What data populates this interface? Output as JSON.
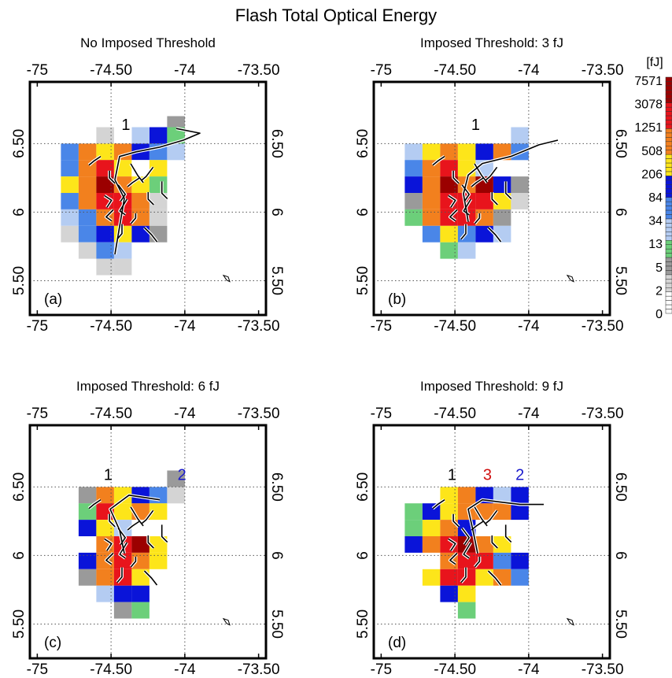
{
  "figure": {
    "title": "Flash Total Optical Energy"
  },
  "colorbar": {
    "unit": "[fJ]",
    "labels": [
      "7571",
      "3078",
      "1251",
      "508",
      "206",
      "84",
      "34",
      "13",
      "5",
      "2",
      "0"
    ],
    "bands": [
      {
        "name": "dark-red",
        "color": "#9b0000",
        "n": 6
      },
      {
        "name": "red",
        "color": "#e8141c",
        "n": 6
      },
      {
        "name": "orange",
        "color": "#f2801e",
        "n": 6
      },
      {
        "name": "yellow",
        "color": "#fde51a",
        "n": 5
      },
      {
        "name": "blue",
        "color": "#0a14d9",
        "n": 5
      },
      {
        "name": "mid-blue",
        "color": "#4a86e8",
        "n": 5
      },
      {
        "name": "light-blue",
        "color": "#b4ccf2",
        "n": 5
      },
      {
        "name": "green",
        "color": "#6ccf7a",
        "n": 4
      },
      {
        "name": "gray",
        "color": "#9a9a9a",
        "n": 4
      },
      {
        "name": "light-gray",
        "color": "#d4d4d4",
        "n": 4
      },
      {
        "name": "white",
        "color": "#ffffff",
        "n": 5
      }
    ]
  },
  "panels": [
    {
      "id": "a",
      "title": "No Imposed Threshold",
      "letter": "(a)",
      "flash_labels": [
        {
          "text": "1",
          "color": "#000000"
        }
      ]
    },
    {
      "id": "b",
      "title": "Imposed Threshold: 3 fJ",
      "letter": "(b)",
      "flash_labels": [
        {
          "text": "1",
          "color": "#000000"
        }
      ]
    },
    {
      "id": "c",
      "title": "Imposed Threshold: 6 fJ",
      "letter": "(c)",
      "flash_labels": [
        {
          "text": "1",
          "color": "#000000"
        },
        {
          "text": "2",
          "color": "#1a1acc"
        }
      ]
    },
    {
      "id": "d",
      "title": "Imposed Threshold: 9 fJ",
      "letter": "(d)",
      "flash_labels": [
        {
          "text": "1",
          "color": "#000000"
        },
        {
          "text": "3",
          "color": "#d01010"
        },
        {
          "text": "2",
          "color": "#1a1acc"
        }
      ]
    }
  ],
  "chart_data": [
    {
      "type": "heatmap",
      "title": "No Imposed Threshold",
      "x_ticks": [
        "-75",
        "-74.50",
        "-74",
        "-73.50"
      ],
      "y_ticks": [
        "6.50",
        "6",
        "5.50"
      ],
      "xlim": [
        -75.05,
        -73.45
      ],
      "ylim": [
        5.25,
        6.95
      ],
      "grid": true,
      "colorbar_unit": "[fJ]",
      "cells": [
        {
          "lon": -74.06,
          "lat": 6.64,
          "c": "gray"
        },
        {
          "lon": -74.18,
          "lat": 6.56,
          "c": "blue"
        },
        {
          "lon": -74.06,
          "lat": 6.56,
          "c": "green"
        },
        {
          "lon": -74.3,
          "lat": 6.56,
          "c": "light-blue"
        },
        {
          "lon": -74.42,
          "lat": 6.56,
          "c": "white"
        },
        {
          "lon": -74.54,
          "lat": 6.56,
          "c": "light-gray"
        },
        {
          "lon": -74.78,
          "lat": 6.44,
          "c": "mid-blue"
        },
        {
          "lon": -74.66,
          "lat": 6.44,
          "c": "orange"
        },
        {
          "lon": -74.54,
          "lat": 6.44,
          "c": "yellow"
        },
        {
          "lon": -74.42,
          "lat": 6.44,
          "c": "orange"
        },
        {
          "lon": -74.3,
          "lat": 6.44,
          "c": "blue"
        },
        {
          "lon": -74.18,
          "lat": 6.44,
          "c": "mid-blue"
        },
        {
          "lon": -74.06,
          "lat": 6.44,
          "c": "light-blue"
        },
        {
          "lon": -74.78,
          "lat": 6.32,
          "c": "mid-blue"
        },
        {
          "lon": -74.66,
          "lat": 6.32,
          "c": "orange"
        },
        {
          "lon": -74.54,
          "lat": 6.32,
          "c": "red"
        },
        {
          "lon": -74.42,
          "lat": 6.32,
          "c": "yellow"
        },
        {
          "lon": -74.3,
          "lat": 6.32,
          "c": "white"
        },
        {
          "lon": -74.18,
          "lat": 6.32,
          "c": "yellow"
        },
        {
          "lon": -74.78,
          "lat": 6.2,
          "c": "yellow"
        },
        {
          "lon": -74.66,
          "lat": 6.2,
          "c": "orange"
        },
        {
          "lon": -74.54,
          "lat": 6.2,
          "c": "dark-red"
        },
        {
          "lon": -74.42,
          "lat": 6.2,
          "c": "orange"
        },
        {
          "lon": -74.3,
          "lat": 6.2,
          "c": "yellow"
        },
        {
          "lon": -74.18,
          "lat": 6.2,
          "c": "green"
        },
        {
          "lon": -74.78,
          "lat": 6.08,
          "c": "mid-blue"
        },
        {
          "lon": -74.66,
          "lat": 6.08,
          "c": "orange"
        },
        {
          "lon": -74.54,
          "lat": 6.08,
          "c": "red"
        },
        {
          "lon": -74.42,
          "lat": 6.08,
          "c": "red"
        },
        {
          "lon": -74.3,
          "lat": 6.08,
          "c": "orange"
        },
        {
          "lon": -74.18,
          "lat": 6.08,
          "c": "light-gray"
        },
        {
          "lon": -74.78,
          "lat": 5.96,
          "c": "light-blue"
        },
        {
          "lon": -74.66,
          "lat": 5.96,
          "c": "mid-blue"
        },
        {
          "lon": -74.54,
          "lat": 5.96,
          "c": "orange"
        },
        {
          "lon": -74.42,
          "lat": 5.96,
          "c": "red"
        },
        {
          "lon": -74.3,
          "lat": 5.96,
          "c": "orange"
        },
        {
          "lon": -74.18,
          "lat": 5.96,
          "c": "light-gray"
        },
        {
          "lon": -74.78,
          "lat": 5.84,
          "c": "light-gray"
        },
        {
          "lon": -74.66,
          "lat": 5.84,
          "c": "mid-blue"
        },
        {
          "lon": -74.54,
          "lat": 5.84,
          "c": "blue"
        },
        {
          "lon": -74.42,
          "lat": 5.84,
          "c": "yellow"
        },
        {
          "lon": -74.3,
          "lat": 5.84,
          "c": "blue"
        },
        {
          "lon": -74.18,
          "lat": 5.84,
          "c": "gray"
        },
        {
          "lon": -74.66,
          "lat": 5.72,
          "c": "light-gray"
        },
        {
          "lon": -74.54,
          "lat": 5.72,
          "c": "mid-blue"
        },
        {
          "lon": -74.42,
          "lat": 5.72,
          "c": "light-blue"
        },
        {
          "lon": -74.54,
          "lat": 5.6,
          "c": "light-gray"
        },
        {
          "lon": -74.42,
          "lat": 5.6,
          "c": "light-gray"
        }
      ]
    },
    {
      "type": "heatmap",
      "title": "Imposed Threshold: 3 fJ",
      "x_ticks": [
        "-75",
        "-74.50",
        "-74",
        "-73.50"
      ],
      "y_ticks": [
        "6.50",
        "6",
        "5.50"
      ],
      "xlim": [
        -75.05,
        -73.45
      ],
      "ylim": [
        5.25,
        6.95
      ],
      "grid": true,
      "colorbar_unit": "[fJ]",
      "cells": [
        {
          "lon": -74.06,
          "lat": 6.56,
          "c": "light-blue"
        },
        {
          "lon": -74.78,
          "lat": 6.44,
          "c": "light-blue"
        },
        {
          "lon": -74.66,
          "lat": 6.44,
          "c": "yellow"
        },
        {
          "lon": -74.54,
          "lat": 6.44,
          "c": "orange"
        },
        {
          "lon": -74.42,
          "lat": 6.44,
          "c": "yellow"
        },
        {
          "lon": -74.3,
          "lat": 6.44,
          "c": "blue"
        },
        {
          "lon": -74.18,
          "lat": 6.44,
          "c": "orange"
        },
        {
          "lon": -74.06,
          "lat": 6.44,
          "c": "mid-blue"
        },
        {
          "lon": -74.78,
          "lat": 6.32,
          "c": "mid-blue"
        },
        {
          "lon": -74.66,
          "lat": 6.32,
          "c": "orange"
        },
        {
          "lon": -74.54,
          "lat": 6.32,
          "c": "red"
        },
        {
          "lon": -74.42,
          "lat": 6.32,
          "c": "yellow"
        },
        {
          "lon": -74.3,
          "lat": 6.32,
          "c": "light-blue"
        },
        {
          "lon": -74.78,
          "lat": 6.2,
          "c": "blue"
        },
        {
          "lon": -74.66,
          "lat": 6.2,
          "c": "orange"
        },
        {
          "lon": -74.54,
          "lat": 6.2,
          "c": "dark-red"
        },
        {
          "lon": -74.42,
          "lat": 6.2,
          "c": "orange"
        },
        {
          "lon": -74.3,
          "lat": 6.2,
          "c": "dark-red"
        },
        {
          "lon": -74.18,
          "lat": 6.2,
          "c": "blue"
        },
        {
          "lon": -74.06,
          "lat": 6.2,
          "c": "gray"
        },
        {
          "lon": -74.78,
          "lat": 6.08,
          "c": "gray"
        },
        {
          "lon": -74.66,
          "lat": 6.08,
          "c": "orange"
        },
        {
          "lon": -74.54,
          "lat": 6.08,
          "c": "red"
        },
        {
          "lon": -74.42,
          "lat": 6.08,
          "c": "red"
        },
        {
          "lon": -74.3,
          "lat": 6.08,
          "c": "red"
        },
        {
          "lon": -74.18,
          "lat": 6.08,
          "c": "yellow"
        },
        {
          "lon": -74.06,
          "lat": 6.08,
          "c": "light-gray"
        },
        {
          "lon": -74.78,
          "lat": 5.96,
          "c": "green"
        },
        {
          "lon": -74.66,
          "lat": 5.96,
          "c": "orange"
        },
        {
          "lon": -74.54,
          "lat": 5.96,
          "c": "red"
        },
        {
          "lon": -74.42,
          "lat": 5.96,
          "c": "red"
        },
        {
          "lon": -74.3,
          "lat": 5.96,
          "c": "orange"
        },
        {
          "lon": -74.18,
          "lat": 5.96,
          "c": "gray"
        },
        {
          "lon": -74.66,
          "lat": 5.84,
          "c": "mid-blue"
        },
        {
          "lon": -74.54,
          "lat": 5.84,
          "c": "yellow"
        },
        {
          "lon": -74.42,
          "lat": 5.84,
          "c": "mid-blue"
        },
        {
          "lon": -74.3,
          "lat": 5.84,
          "c": "blue"
        },
        {
          "lon": -74.18,
          "lat": 5.84,
          "c": "light-blue"
        },
        {
          "lon": -74.54,
          "lat": 5.72,
          "c": "green"
        },
        {
          "lon": -74.42,
          "lat": 5.72,
          "c": "light-blue"
        }
      ]
    },
    {
      "type": "heatmap",
      "title": "Imposed Threshold: 6 fJ",
      "x_ticks": [
        "-75",
        "-74.50",
        "-74",
        "-73.50"
      ],
      "y_ticks": [
        "6.50",
        "6",
        "5.50"
      ],
      "xlim": [
        -75.05,
        -73.45
      ],
      "ylim": [
        5.25,
        6.95
      ],
      "grid": true,
      "colorbar_unit": "[fJ]",
      "cells": [
        {
          "lon": -74.06,
          "lat": 6.56,
          "c": "gray"
        },
        {
          "lon": -74.66,
          "lat": 6.44,
          "c": "gray"
        },
        {
          "lon": -74.54,
          "lat": 6.44,
          "c": "orange"
        },
        {
          "lon": -74.42,
          "lat": 6.44,
          "c": "yellow"
        },
        {
          "lon": -74.3,
          "lat": 6.44,
          "c": "blue"
        },
        {
          "lon": -74.18,
          "lat": 6.44,
          "c": "mid-blue"
        },
        {
          "lon": -74.06,
          "lat": 6.44,
          "c": "light-gray"
        },
        {
          "lon": -74.66,
          "lat": 6.32,
          "c": "green"
        },
        {
          "lon": -74.54,
          "lat": 6.32,
          "c": "red"
        },
        {
          "lon": -74.42,
          "lat": 6.32,
          "c": "yellow"
        },
        {
          "lon": -74.3,
          "lat": 6.32,
          "c": "orange"
        },
        {
          "lon": -74.18,
          "lat": 6.32,
          "c": "yellow"
        },
        {
          "lon": -74.66,
          "lat": 6.2,
          "c": "blue"
        },
        {
          "lon": -74.54,
          "lat": 6.2,
          "c": "yellow"
        },
        {
          "lon": -74.42,
          "lat": 6.2,
          "c": "light-blue"
        },
        {
          "lon": -74.54,
          "lat": 6.08,
          "c": "orange"
        },
        {
          "lon": -74.42,
          "lat": 6.08,
          "c": "red"
        },
        {
          "lon": -74.3,
          "lat": 6.08,
          "c": "dark-red"
        },
        {
          "lon": -74.18,
          "lat": 6.08,
          "c": "yellow"
        },
        {
          "lon": -74.66,
          "lat": 5.96,
          "c": "blue"
        },
        {
          "lon": -74.54,
          "lat": 5.96,
          "c": "orange"
        },
        {
          "lon": -74.42,
          "lat": 5.96,
          "c": "red"
        },
        {
          "lon": -74.3,
          "lat": 5.96,
          "c": "orange"
        },
        {
          "lon": -74.18,
          "lat": 5.96,
          "c": "yellow"
        },
        {
          "lon": -74.66,
          "lat": 5.84,
          "c": "gray"
        },
        {
          "lon": -74.54,
          "lat": 5.84,
          "c": "orange"
        },
        {
          "lon": -74.42,
          "lat": 5.84,
          "c": "red"
        },
        {
          "lon": -74.3,
          "lat": 5.84,
          "c": "yellow"
        },
        {
          "lon": -74.54,
          "lat": 5.72,
          "c": "light-blue"
        },
        {
          "lon": -74.42,
          "lat": 5.72,
          "c": "blue"
        },
        {
          "lon": -74.3,
          "lat": 5.72,
          "c": "blue"
        },
        {
          "lon": -74.42,
          "lat": 5.6,
          "c": "gray"
        },
        {
          "lon": -74.3,
          "lat": 5.6,
          "c": "green"
        }
      ]
    },
    {
      "type": "heatmap",
      "title": "Imposed Threshold: 9 fJ",
      "x_ticks": [
        "-75",
        "-74.50",
        "-74",
        "-73.50"
      ],
      "y_ticks": [
        "6.50",
        "6",
        "5.50"
      ],
      "xlim": [
        -75.05,
        -73.45
      ],
      "ylim": [
        5.25,
        6.95
      ],
      "grid": true,
      "colorbar_unit": "[fJ]",
      "cells": [
        {
          "lon": -74.54,
          "lat": 6.44,
          "c": "yellow"
        },
        {
          "lon": -74.42,
          "lat": 6.44,
          "c": "orange"
        },
        {
          "lon": -74.3,
          "lat": 6.44,
          "c": "blue"
        },
        {
          "lon": -74.18,
          "lat": 6.44,
          "c": "light-blue"
        },
        {
          "lon": -74.06,
          "lat": 6.44,
          "c": "blue"
        },
        {
          "lon": -74.78,
          "lat": 6.32,
          "c": "green"
        },
        {
          "lon": -74.66,
          "lat": 6.32,
          "c": "blue"
        },
        {
          "lon": -74.54,
          "lat": 6.32,
          "c": "yellow"
        },
        {
          "lon": -74.42,
          "lat": 6.32,
          "c": "orange"
        },
        {
          "lon": -74.3,
          "lat": 6.32,
          "c": "orange"
        },
        {
          "lon": -74.18,
          "lat": 6.32,
          "c": "orange"
        },
        {
          "lon": -74.06,
          "lat": 6.32,
          "c": "blue"
        },
        {
          "lon": -74.78,
          "lat": 6.2,
          "c": "green"
        },
        {
          "lon": -74.66,
          "lat": 6.2,
          "c": "yellow"
        },
        {
          "lon": -74.54,
          "lat": 6.2,
          "c": "orange"
        },
        {
          "lon": -74.42,
          "lat": 6.2,
          "c": "blue"
        },
        {
          "lon": -74.78,
          "lat": 6.08,
          "c": "blue"
        },
        {
          "lon": -74.66,
          "lat": 6.08,
          "c": "orange"
        },
        {
          "lon": -74.54,
          "lat": 6.08,
          "c": "red"
        },
        {
          "lon": -74.42,
          "lat": 6.08,
          "c": "dark-red"
        },
        {
          "lon": -74.3,
          "lat": 6.08,
          "c": "orange"
        },
        {
          "lon": -74.18,
          "lat": 6.08,
          "c": "yellow"
        },
        {
          "lon": -74.54,
          "lat": 5.96,
          "c": "orange"
        },
        {
          "lon": -74.42,
          "lat": 5.96,
          "c": "red"
        },
        {
          "lon": -74.3,
          "lat": 5.96,
          "c": "red"
        },
        {
          "lon": -74.18,
          "lat": 5.96,
          "c": "mid-blue"
        },
        {
          "lon": -74.06,
          "lat": 5.96,
          "c": "blue"
        },
        {
          "lon": -74.66,
          "lat": 5.84,
          "c": "yellow"
        },
        {
          "lon": -74.54,
          "lat": 5.84,
          "c": "red"
        },
        {
          "lon": -74.42,
          "lat": 5.84,
          "c": "red"
        },
        {
          "lon": -74.3,
          "lat": 5.84,
          "c": "yellow"
        },
        {
          "lon": -74.18,
          "lat": 5.84,
          "c": "orange"
        },
        {
          "lon": -74.06,
          "lat": 5.84,
          "c": "mid-blue"
        },
        {
          "lon": -74.54,
          "lat": 5.72,
          "c": "blue"
        },
        {
          "lon": -74.42,
          "lat": 5.72,
          "c": "yellow"
        },
        {
          "lon": -74.42,
          "lat": 5.6,
          "c": "green"
        }
      ]
    }
  ]
}
